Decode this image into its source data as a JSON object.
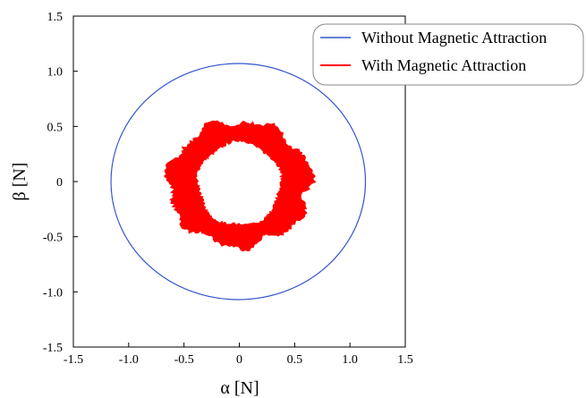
{
  "chart_data": {
    "type": "line",
    "xlabel": "α [N]",
    "ylabel": "β [N]",
    "xlim": [
      -1.5,
      1.5
    ],
    "ylim": [
      -1.5,
      1.5
    ],
    "x_ticks": [
      "-1.5",
      "-1.0",
      "-0.5",
      "0",
      "0.5",
      "1.0",
      "1.5"
    ],
    "y_ticks": [
      "1.5",
      "1.0",
      "0.5",
      "0",
      "-0.5",
      "-1.0",
      "-1.5"
    ],
    "grid": false,
    "legend_position": "top-right",
    "series": [
      {
        "name": "Without Magnetic Attraction",
        "color": "#3355cc",
        "shape": "circle",
        "center": [
          -0.01,
          0.0
        ],
        "radius_x": 1.15,
        "radius_y": 1.07
      },
      {
        "name": "With Magnetic Attraction",
        "color": "#ff0000",
        "shape": "noisy-band",
        "center": [
          0.0,
          -0.02
        ],
        "radius_inner": 0.38,
        "radius_outer": 0.56,
        "radius_outer_x": 0.64
      }
    ]
  }
}
